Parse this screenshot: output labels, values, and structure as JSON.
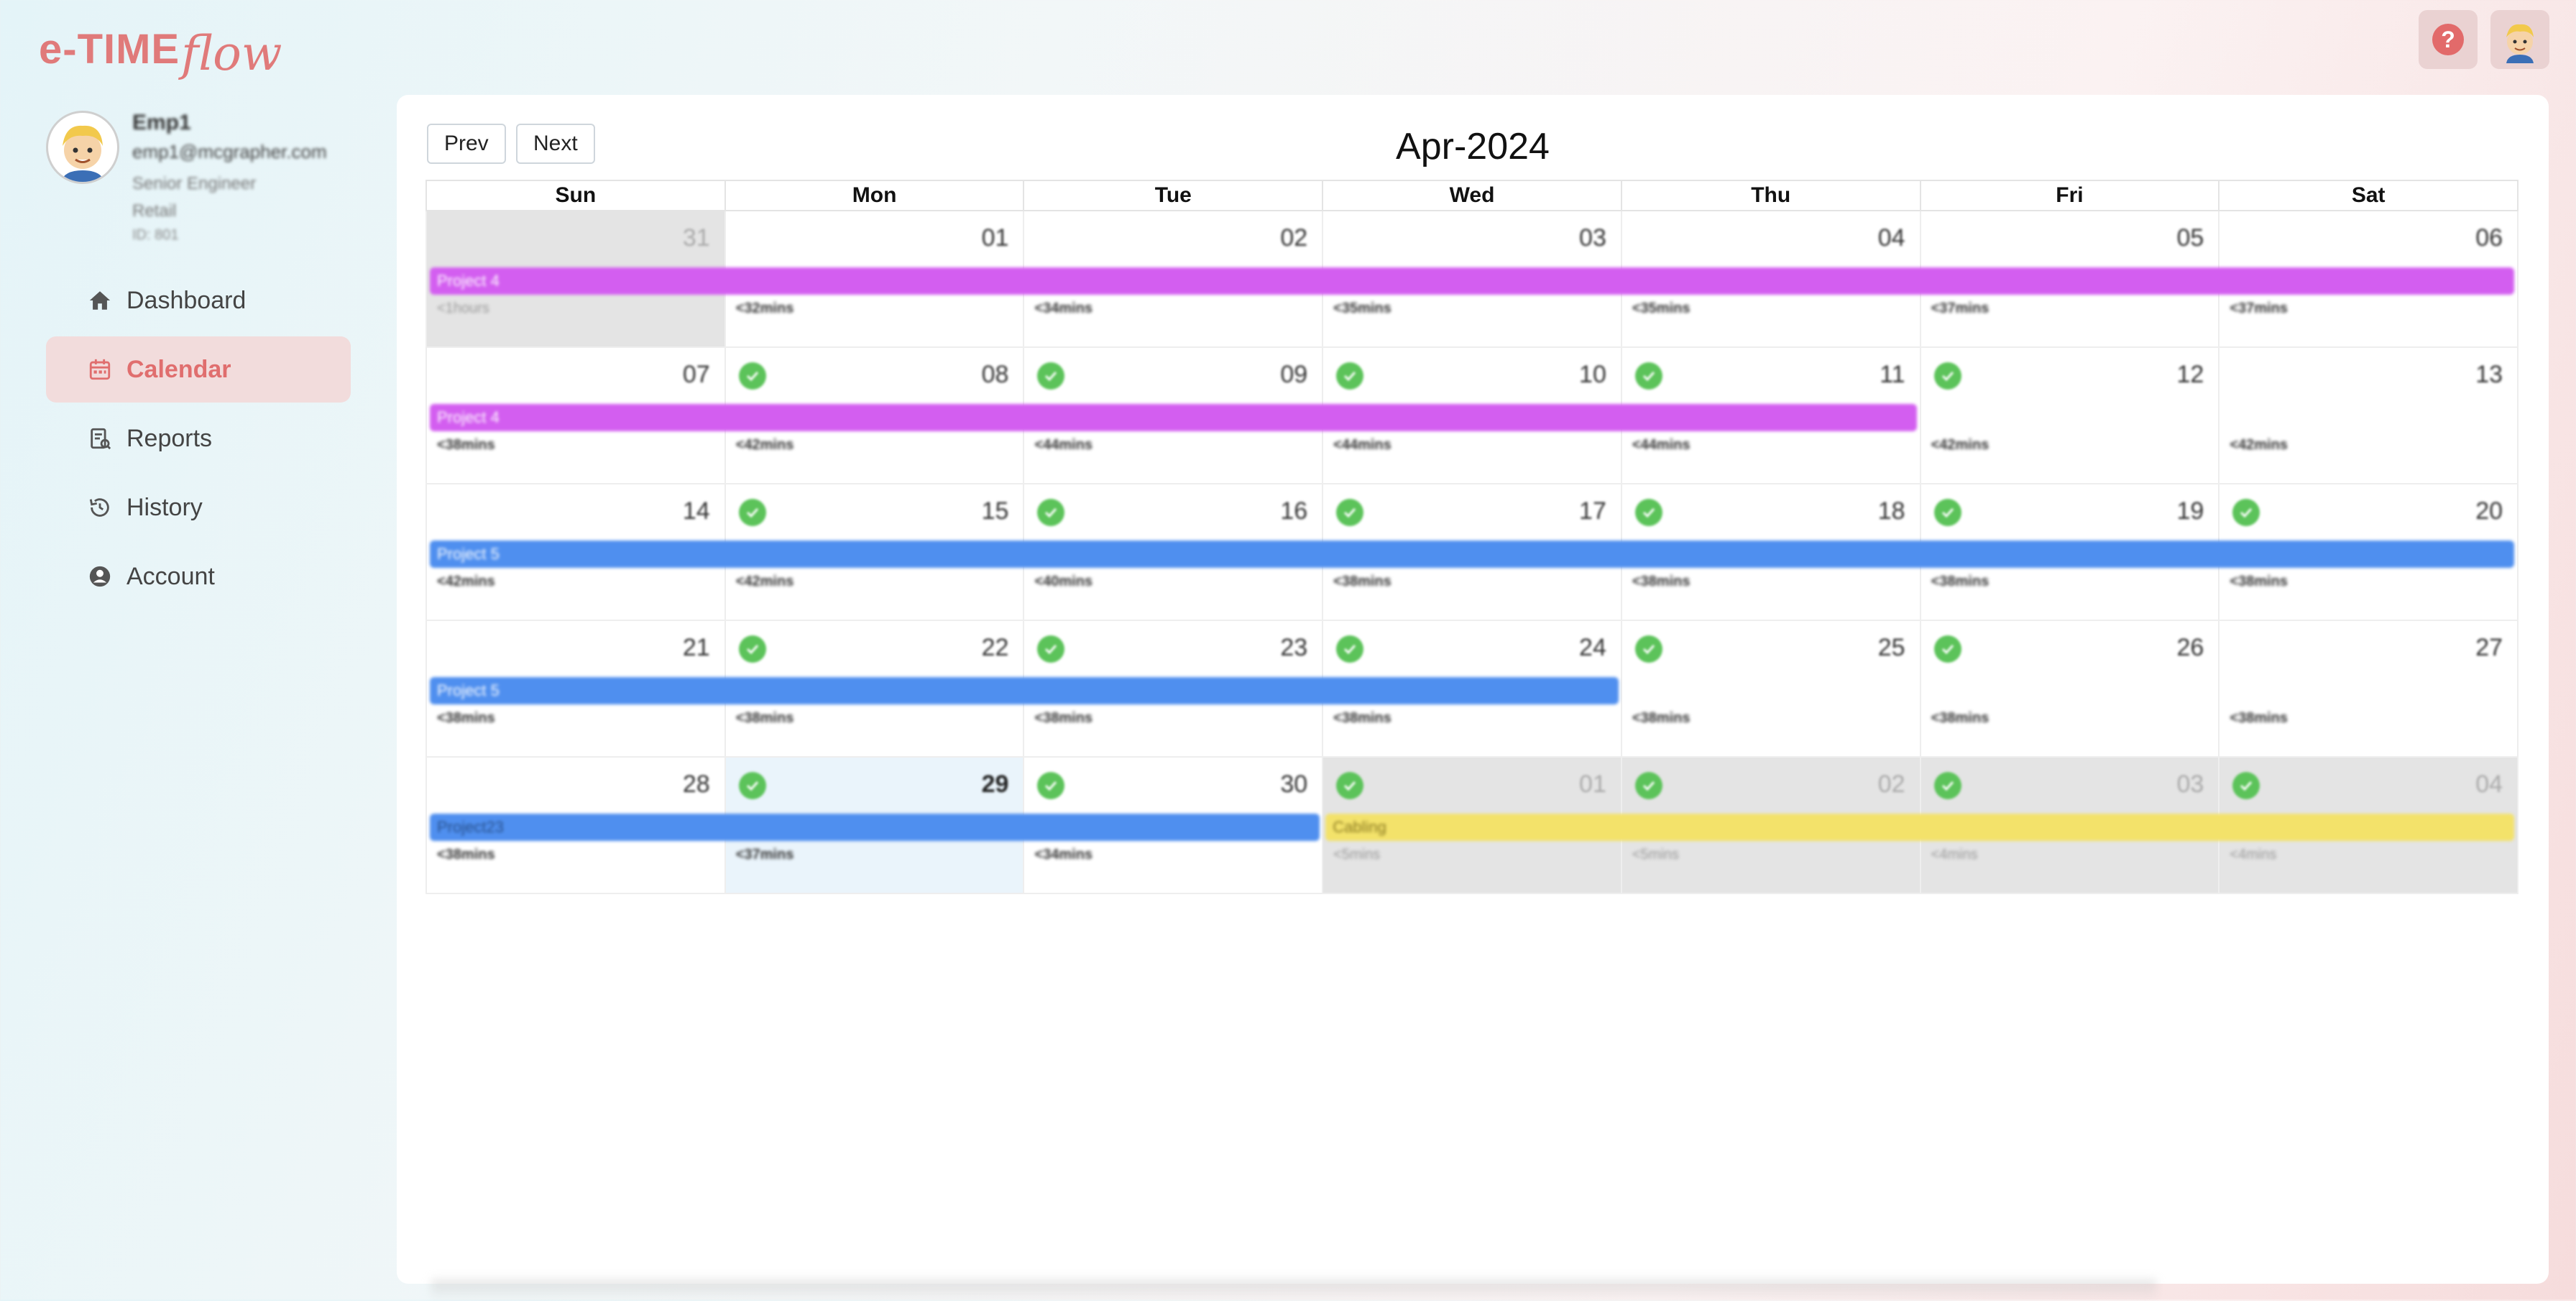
{
  "app": {
    "logo_main": "e-TIME",
    "logo_script": "flow"
  },
  "header": {
    "help_symbol": "?",
    "help_color": "#e26a6a"
  },
  "profile": {
    "name": "Emp1",
    "email": "emp1@mcgrapher.com",
    "title": "Senior Engineer",
    "department": "Retail",
    "id": "ID: 801"
  },
  "nav": [
    {
      "label": "Dashboard",
      "icon": "home-icon",
      "active": false
    },
    {
      "label": "Calendar",
      "icon": "calendar-icon",
      "active": true
    },
    {
      "label": "Reports",
      "icon": "reports-icon",
      "active": false
    },
    {
      "label": "History",
      "icon": "history-icon",
      "active": false
    },
    {
      "label": "Account",
      "icon": "account-icon",
      "active": false
    }
  ],
  "calendar": {
    "prev_label": "Prev",
    "next_label": "Next",
    "month_title": "Apr-2024",
    "weekdays": [
      "Sun",
      "Mon",
      "Tue",
      "Wed",
      "Thu",
      "Fri",
      "Sat"
    ],
    "weeks": [
      {
        "days": [
          {
            "num": "31",
            "other": true,
            "check": false,
            "hours": "<1hours"
          },
          {
            "num": "01",
            "check": false,
            "hours": "<32mins"
          },
          {
            "num": "02",
            "check": false,
            "hours": "<34mins"
          },
          {
            "num": "03",
            "check": false,
            "hours": "<35mins"
          },
          {
            "num": "04",
            "check": false,
            "hours": "<35mins"
          },
          {
            "num": "05",
            "check": false,
            "hours": "<37mins"
          },
          {
            "num": "06",
            "check": false,
            "hours": "<37mins"
          }
        ],
        "events": [
          {
            "label": "Project 4",
            "color": "purple",
            "start": 0,
            "end": 7
          }
        ]
      },
      {
        "days": [
          {
            "num": "07",
            "check": false,
            "hours": "<38mins"
          },
          {
            "num": "08",
            "check": true,
            "hours": "<42mins"
          },
          {
            "num": "09",
            "check": true,
            "hours": "<44mins"
          },
          {
            "num": "10",
            "check": true,
            "hours": "<44mins"
          },
          {
            "num": "11",
            "check": true,
            "hours": "<44mins"
          },
          {
            "num": "12",
            "check": true,
            "hours": "<42mins"
          },
          {
            "num": "13",
            "check": false,
            "hours": "<42mins"
          }
        ],
        "events": [
          {
            "label": "Project 4",
            "color": "purple",
            "start": 0,
            "end": 5
          }
        ]
      },
      {
        "days": [
          {
            "num": "14",
            "check": false,
            "hours": "<42mins"
          },
          {
            "num": "15",
            "check": true,
            "hours": "<42mins"
          },
          {
            "num": "16",
            "check": true,
            "hours": "<40mins"
          },
          {
            "num": "17",
            "check": true,
            "hours": "<38mins"
          },
          {
            "num": "18",
            "check": true,
            "hours": "<38mins"
          },
          {
            "num": "19",
            "check": true,
            "hours": "<38mins"
          },
          {
            "num": "20",
            "check": true,
            "hours": "<38mins"
          }
        ],
        "events": [
          {
            "label": "Project 5",
            "color": "blue",
            "start": 0,
            "end": 7
          }
        ]
      },
      {
        "days": [
          {
            "num": "21",
            "check": false,
            "hours": "<38mins"
          },
          {
            "num": "22",
            "check": true,
            "hours": "<38mins"
          },
          {
            "num": "23",
            "check": true,
            "hours": "<38mins"
          },
          {
            "num": "24",
            "check": true,
            "hours": "<38mins"
          },
          {
            "num": "25",
            "check": true,
            "hours": "<38mins"
          },
          {
            "num": "26",
            "check": true,
            "hours": "<38mins"
          },
          {
            "num": "27",
            "check": false,
            "hours": "<38mins"
          }
        ],
        "events": [
          {
            "label": "Project 5",
            "color": "blue",
            "start": 0,
            "end": 4
          }
        ]
      },
      {
        "days": [
          {
            "num": "28",
            "check": false,
            "hours": "<38mins"
          },
          {
            "num": "29",
            "check": true,
            "today": true,
            "hours": "<37mins"
          },
          {
            "num": "30",
            "check": true,
            "hours": "<34mins"
          },
          {
            "num": "01",
            "other": true,
            "check": true,
            "hours": "<5mins"
          },
          {
            "num": "02",
            "other": true,
            "check": true,
            "hours": "<5mins"
          },
          {
            "num": "03",
            "other": true,
            "check": true,
            "hours": "<4mins"
          },
          {
            "num": "04",
            "other": true,
            "check": true,
            "hours": "<4mins"
          }
        ],
        "events": [
          {
            "label": "Project23",
            "color": "blue-dark",
            "start": 0,
            "end": 3
          },
          {
            "label": "Cabling",
            "color": "yellow",
            "start": 3,
            "end": 7
          }
        ]
      }
    ]
  },
  "colors": {
    "accent": "#e07a7a",
    "active_nav_bg": "#f2dcdc",
    "event_purple": "#d35ef0",
    "event_blue": "#4f8fef",
    "event_yellow": "#f3e26a",
    "check_green": "#5cc35a"
  }
}
